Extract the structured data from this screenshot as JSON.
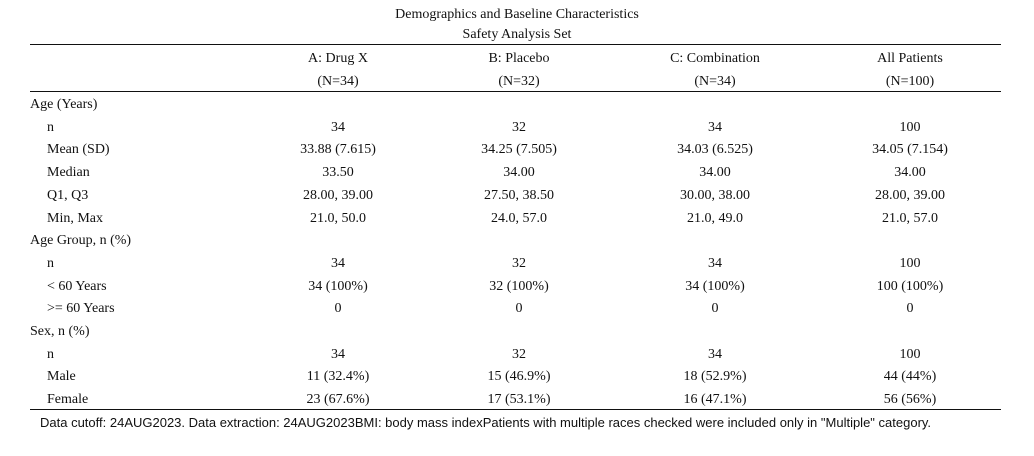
{
  "title": "Demographics and Baseline Characteristics",
  "subtitle": "Safety Analysis Set",
  "columns": [
    {
      "arm": "A: Drug X",
      "n": "(N=34)"
    },
    {
      "arm": "B: Placebo",
      "n": "(N=32)"
    },
    {
      "arm": "C: Combination",
      "n": "(N=34)"
    },
    {
      "arm": "All Patients",
      "n": "(N=100)"
    }
  ],
  "rows": [
    {
      "label": "Age (Years)",
      "kind": "group",
      "values": []
    },
    {
      "label": "n",
      "kind": "stat",
      "values": [
        "34",
        "32",
        "34",
        "100"
      ]
    },
    {
      "label": "Mean (SD)",
      "kind": "stat",
      "values": [
        "33.88 (7.615)",
        "34.25 (7.505)",
        "34.03 (6.525)",
        "34.05 (7.154)"
      ]
    },
    {
      "label": "Median",
      "kind": "stat",
      "values": [
        "33.50",
        "34.00",
        "34.00",
        "34.00"
      ]
    },
    {
      "label": "Q1, Q3",
      "kind": "stat",
      "values": [
        "28.00, 39.00",
        "27.50, 38.50",
        "30.00, 38.00",
        "28.00, 39.00"
      ]
    },
    {
      "label": "Min, Max",
      "kind": "stat",
      "values": [
        "21.0, 50.0",
        "24.0, 57.0",
        "21.0, 49.0",
        "21.0, 57.0"
      ]
    },
    {
      "label": "Age Group, n (%)",
      "kind": "group",
      "values": []
    },
    {
      "label": "n",
      "kind": "stat",
      "values": [
        "34",
        "32",
        "34",
        "100"
      ]
    },
    {
      "label": "< 60 Years",
      "kind": "stat",
      "values": [
        "34 (100%)",
        "32 (100%)",
        "34 (100%)",
        "100 (100%)"
      ]
    },
    {
      "label": ">= 60 Years",
      "kind": "stat",
      "values": [
        "0",
        "0",
        "0",
        "0"
      ]
    },
    {
      "label": "Sex, n (%)",
      "kind": "group",
      "values": []
    },
    {
      "label": "n",
      "kind": "stat",
      "values": [
        "34",
        "32",
        "34",
        "100"
      ]
    },
    {
      "label": "Male",
      "kind": "stat",
      "values": [
        "11 (32.4%)",
        "15 (46.9%)",
        "18 (52.9%)",
        "44 (44%)"
      ]
    },
    {
      "label": "Female",
      "kind": "stat",
      "values": [
        "23 (67.6%)",
        "17 (53.1%)",
        "16 (47.1%)",
        "56 (56%)"
      ]
    }
  ],
  "footnote": "Data cutoff: 24AUG2023. Data extraction: 24AUG2023BMI: body mass indexPatients with multiple races checked were included only in \"Multiple\" category."
}
